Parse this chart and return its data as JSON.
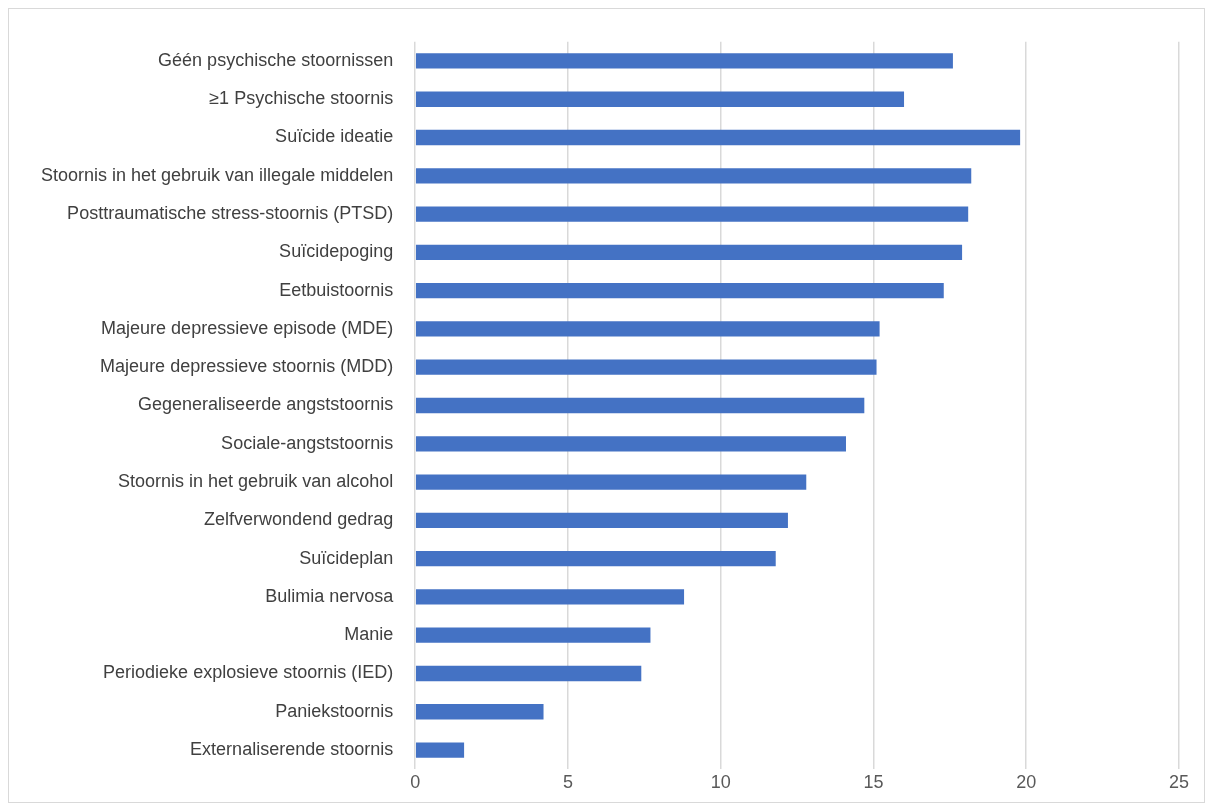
{
  "chart_data": {
    "type": "bar",
    "orientation": "horizontal",
    "categories": [
      "Géén psychische stoornissen",
      "≥1 Psychische stoornis",
      "Suïcide ideatie",
      "Stoornis in het gebruik van illegale middelen",
      "Posttraumatische stress-stoornis (PTSD)",
      "Suïcidepoging",
      "Eetbuistoornis",
      "Majeure depressieve episode (MDE)",
      "Majeure depressieve stoornis (MDD)",
      "Gegeneraliseerde angststoornis",
      "Sociale-angststoornis",
      "Stoornis in het gebruik van alcohol",
      "Zelfverwondend gedrag",
      "Suïcideplan",
      "Bulimia nervosa",
      "Manie",
      "Periodieke explosieve stoornis (IED)",
      "Paniekstoornis",
      "Externaliserende stoornis"
    ],
    "values": [
      17.6,
      16.0,
      19.8,
      18.2,
      18.1,
      17.9,
      17.3,
      15.2,
      15.1,
      14.7,
      14.1,
      12.8,
      12.2,
      11.8,
      8.8,
      7.7,
      7.4,
      4.2,
      1.6
    ],
    "color": "#4472c4",
    "xlim": [
      0,
      25
    ],
    "xticks": [
      0,
      5,
      10,
      15,
      20,
      25
    ],
    "grid": "x",
    "legend": false
  }
}
